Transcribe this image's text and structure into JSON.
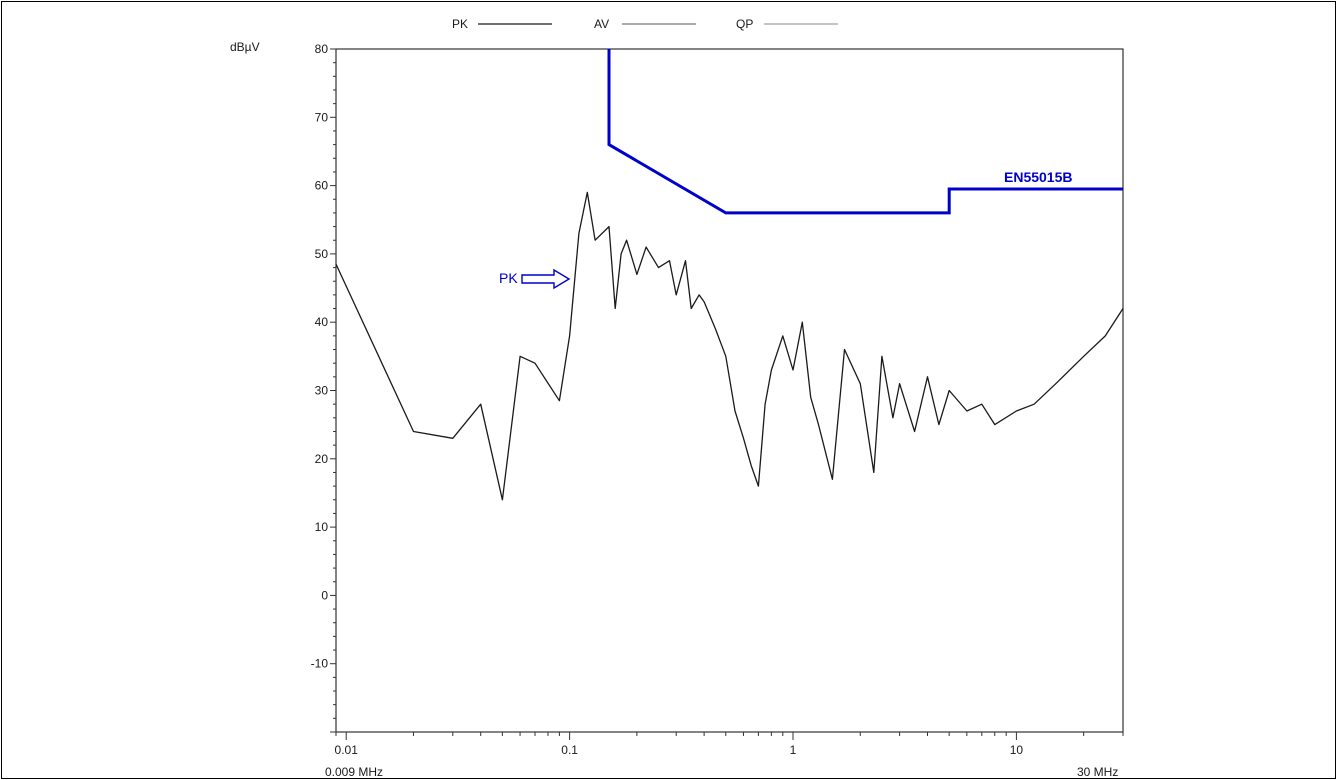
{
  "chart_data": {
    "type": "line",
    "title": "",
    "ylabel": "dBµV",
    "xlabel": "",
    "x_scale": "log",
    "xlim": [
      0.009,
      30
    ],
    "ylim": [
      -20,
      80
    ],
    "x_ticks": [
      {
        "value": 0.01,
        "label": "0.01"
      },
      {
        "value": 0.1,
        "label": "0.1"
      },
      {
        "value": 1,
        "label": "1"
      },
      {
        "value": 10,
        "label": "10"
      }
    ],
    "x_range_labels": {
      "start": "0.009 MHz",
      "end": "30 MHz"
    },
    "y_ticks": [
      80,
      70,
      60,
      50,
      40,
      30,
      20,
      10,
      0,
      -10
    ],
    "grid": false,
    "legend": {
      "position": "top",
      "entries": [
        {
          "label": "PK",
          "color": "#1a1a1a"
        },
        {
          "label": "AV",
          "color": "#555555"
        },
        {
          "label": "QP",
          "color": "#8a8a8a"
        }
      ]
    },
    "series": [
      {
        "name": "PK",
        "color": "#1a1a1a",
        "x": [
          0.009,
          0.02,
          0.03,
          0.04,
          0.05,
          0.06,
          0.07,
          0.09,
          0.1,
          0.11,
          0.12,
          0.13,
          0.15,
          0.16,
          0.17,
          0.18,
          0.2,
          0.22,
          0.25,
          0.28,
          0.3,
          0.33,
          0.35,
          0.38,
          0.4,
          0.45,
          0.5,
          0.55,
          0.6,
          0.65,
          0.7,
          0.75,
          0.8,
          0.9,
          1.0,
          1.1,
          1.2,
          1.3,
          1.5,
          1.7,
          2.0,
          2.3,
          2.5,
          2.8,
          3.0,
          3.5,
          4.0,
          4.5,
          5.0,
          6.0,
          7.0,
          8.0,
          10.0,
          12.0,
          15.0,
          20.0,
          25.0,
          30.0
        ],
        "values": [
          48.5,
          24,
          23,
          28,
          14,
          35,
          34,
          28.5,
          38,
          53,
          59,
          52,
          54,
          42,
          50,
          52,
          47,
          51,
          48,
          49,
          44,
          49,
          42,
          44,
          43,
          39,
          35,
          27,
          23,
          19,
          16,
          28,
          33,
          38,
          33,
          40,
          29,
          25,
          17,
          36,
          31,
          18,
          35,
          26,
          31,
          24,
          32,
          25,
          30,
          27,
          28,
          25,
          27,
          28,
          31,
          35,
          38,
          42
        ]
      }
    ],
    "limit_line": {
      "name": "EN55015B",
      "color": "#0000cc",
      "x": [
        0.15,
        0.15,
        0.5,
        5.0,
        5.0,
        30.0
      ],
      "values": [
        80,
        66,
        56,
        56,
        59.5,
        59.5
      ]
    },
    "annotations": [
      {
        "text": "PK",
        "color": "#0000cc",
        "arrow": "right"
      }
    ]
  },
  "legend_labels": {
    "pk": "PK",
    "av": "AV",
    "qp": "QP"
  },
  "y_unit": "dBµV",
  "limit_label": "EN55015B",
  "pk_annotation": "PK",
  "x_start_label": "0.009 MHz",
  "x_end_label": "30 MHz"
}
